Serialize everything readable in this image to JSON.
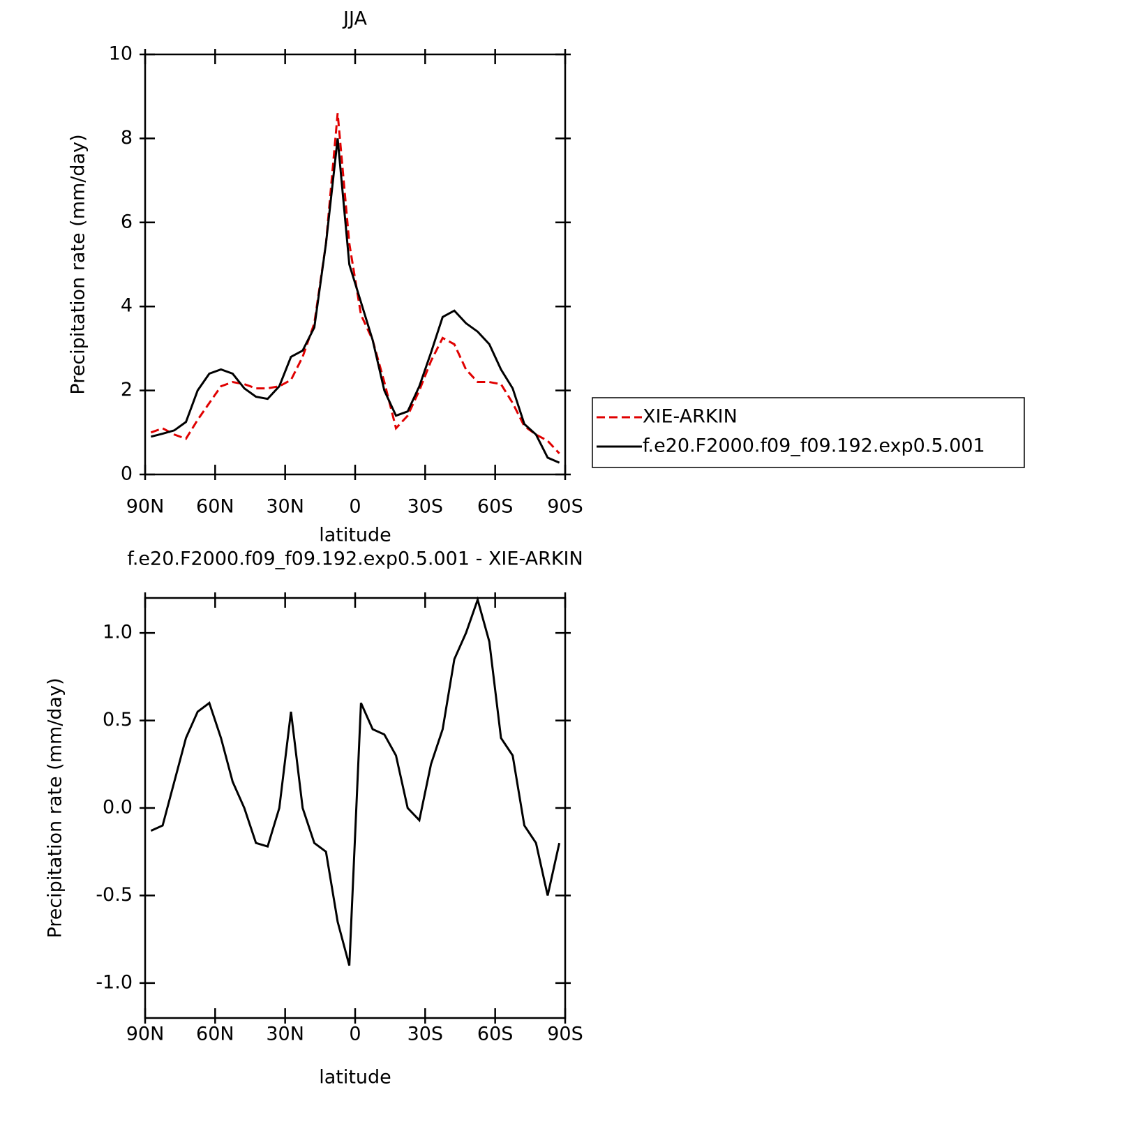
{
  "chart_data": [
    {
      "type": "line",
      "title": "JJA",
      "x_label": "latitude",
      "y_label": "Precipitation rate (mm/day)",
      "x": [
        87.5,
        82.5,
        77.5,
        72.5,
        67.5,
        62.5,
        57.5,
        52.5,
        47.5,
        42.5,
        37.5,
        32.5,
        27.5,
        22.5,
        17.5,
        12.5,
        7.5,
        2.5,
        -2.5,
        -7.5,
        -12.5,
        -17.5,
        -22.5,
        -27.5,
        -32.5,
        -37.5,
        -42.5,
        -47.5,
        -52.5,
        -57.5,
        -62.5,
        -67.5,
        -72.5,
        -77.5,
        -82.5,
        -87.5
      ],
      "xlim": [
        90,
        -90
      ],
      "xticks": [
        {
          "value": 90,
          "label": "90N"
        },
        {
          "value": 60,
          "label": "60N"
        },
        {
          "value": 30,
          "label": "30N"
        },
        0,
        {
          "value": -30,
          "label": "30S"
        },
        {
          "value": -60,
          "label": "60S"
        },
        {
          "value": -90,
          "label": "90S"
        }
      ],
      "ylim": [
        0,
        10
      ],
      "yticks": [
        0,
        2,
        4,
        6,
        8,
        10
      ],
      "legend": "outside-right",
      "series": [
        {
          "name": "XIE-ARKIN",
          "color": "#e00000",
          "style": "dashed",
          "values": [
            1.0,
            1.1,
            0.95,
            0.85,
            1.3,
            1.7,
            2.1,
            2.2,
            2.15,
            2.05,
            2.05,
            2.1,
            2.25,
            2.8,
            3.6,
            5.5,
            8.6,
            5.5,
            3.8,
            3.2,
            2.2,
            1.1,
            1.4,
            2.0,
            2.7,
            3.25,
            3.1,
            2.5,
            2.2,
            2.2,
            2.15,
            1.7,
            1.15,
            0.95,
            0.8,
            0.5
          ]
        },
        {
          "name": "f.e20.F2000.f09_f09.192.exp0.5.001",
          "color": "#000000",
          "style": "solid",
          "values": [
            0.9,
            0.97,
            1.05,
            1.25,
            2.0,
            2.4,
            2.5,
            2.4,
            2.05,
            1.85,
            1.8,
            2.1,
            2.8,
            2.95,
            3.5,
            5.5,
            8.0,
            5.0,
            4.1,
            3.2,
            2.0,
            1.4,
            1.5,
            2.1,
            2.9,
            3.75,
            3.9,
            3.6,
            3.4,
            3.1,
            2.5,
            2.05,
            1.2,
            0.95,
            0.4,
            0.28
          ]
        }
      ]
    },
    {
      "type": "line",
      "title": "f.e20.F2000.f09_f09.192.exp0.5.001 - XIE-ARKIN",
      "x_label": "latitude",
      "y_label": "Precipitation rate (mm/day)",
      "x": [
        87.5,
        82.5,
        77.5,
        72.5,
        67.5,
        62.5,
        57.5,
        52.5,
        47.5,
        42.5,
        37.5,
        32.5,
        27.5,
        22.5,
        17.5,
        12.5,
        7.5,
        2.5,
        -2.5,
        -7.5,
        -12.5,
        -17.5,
        -22.5,
        -27.5,
        -32.5,
        -37.5,
        -42.5,
        -47.5,
        -52.5,
        -57.5,
        -62.5,
        -67.5,
        -72.5,
        -77.5,
        -82.5,
        -87.5
      ],
      "xlim": [
        90,
        -90
      ],
      "xticks": [
        {
          "value": 90,
          "label": "90N"
        },
        {
          "value": 60,
          "label": "60N"
        },
        {
          "value": 30,
          "label": "30N"
        },
        0,
        {
          "value": -30,
          "label": "30S"
        },
        {
          "value": -60,
          "label": "60S"
        },
        {
          "value": -90,
          "label": "90S"
        }
      ],
      "ylim": [
        -1.2,
        1.2
      ],
      "yticks": [
        {
          "value": -1,
          "label": "-1.0"
        },
        {
          "value": -0.5,
          "label": "-0.5"
        },
        {
          "value": 0,
          "label": "0.0"
        },
        0.5,
        {
          "value": 1,
          "label": "1.0"
        }
      ],
      "color": "#000000",
      "values": [
        -0.13,
        -0.1,
        0.15,
        0.4,
        0.55,
        0.6,
        0.4,
        0.15,
        0.0,
        -0.2,
        -0.22,
        0.0,
        0.55,
        0.0,
        -0.2,
        -0.25,
        -0.65,
        -0.9,
        0.6,
        0.45,
        0.42,
        0.3,
        0.0,
        -0.07,
        0.25,
        0.45,
        0.85,
        1.0,
        1.19,
        0.95,
        0.4,
        0.3,
        -0.1,
        -0.2,
        -0.5,
        -0.2
      ]
    }
  ]
}
